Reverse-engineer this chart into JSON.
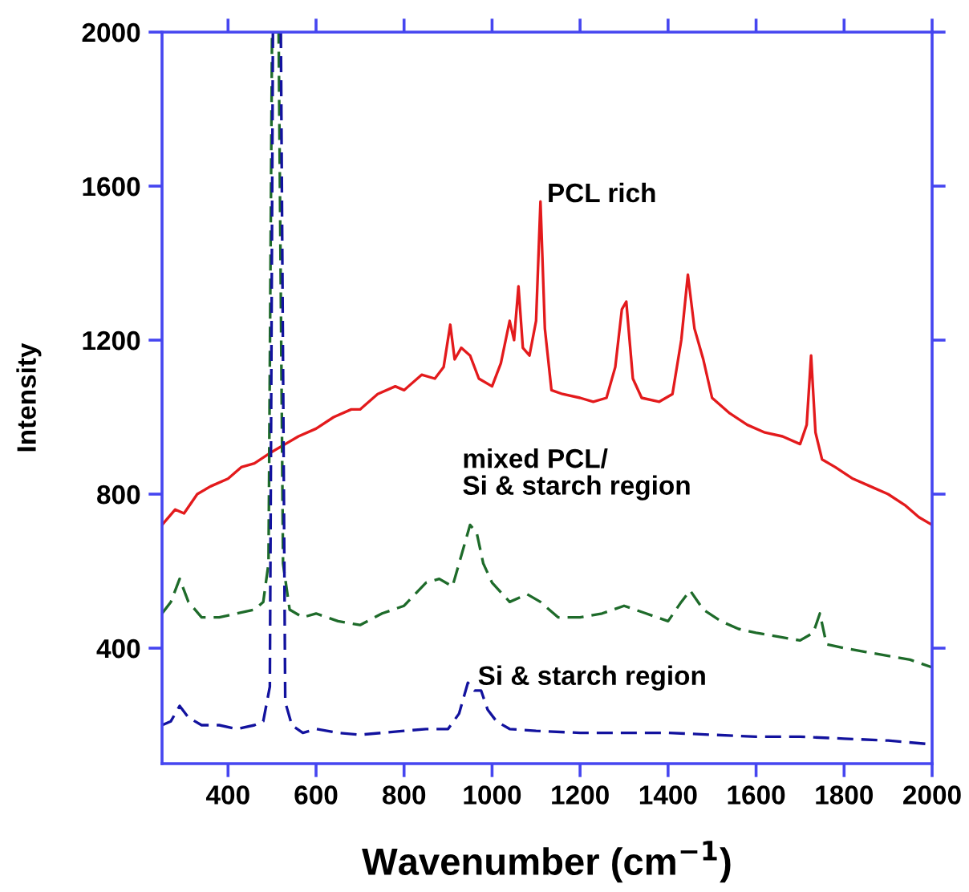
{
  "chart_data": {
    "type": "line",
    "xlabel": "Wavenumber (cm$^{−1}$)",
    "ylabel": "Intensity",
    "xlim": [
      250,
      2000
    ],
    "ylim": [
      100,
      2000
    ],
    "xticks": [
      400,
      600,
      800,
      1000,
      1200,
      1400,
      1600,
      1800,
      2000
    ],
    "yticks": [
      400,
      800,
      1200,
      1600,
      2000
    ],
    "grid": false,
    "legend": false,
    "marker": "none",
    "series": [
      {
        "name": "PCL rich",
        "color": "#e31a1c",
        "line_style": "solid",
        "x": [
          250,
          280,
          300,
          330,
          360,
          400,
          430,
          460,
          500,
          530,
          560,
          600,
          640,
          680,
          700,
          740,
          780,
          800,
          840,
          870,
          890,
          905,
          915,
          930,
          950,
          970,
          1000,
          1020,
          1040,
          1050,
          1060,
          1070,
          1085,
          1100,
          1110,
          1120,
          1135,
          1160,
          1200,
          1230,
          1260,
          1280,
          1295,
          1305,
          1320,
          1340,
          1380,
          1410,
          1430,
          1445,
          1460,
          1480,
          1500,
          1540,
          1580,
          1620,
          1660,
          1700,
          1715,
          1725,
          1735,
          1750,
          1780,
          1820,
          1860,
          1900,
          1940,
          1970,
          2000
        ],
        "values": [
          720,
          760,
          750,
          800,
          820,
          840,
          870,
          880,
          910,
          930,
          950,
          970,
          1000,
          1020,
          1020,
          1060,
          1080,
          1070,
          1110,
          1100,
          1130,
          1240,
          1150,
          1180,
          1160,
          1100,
          1080,
          1140,
          1250,
          1200,
          1340,
          1180,
          1160,
          1250,
          1560,
          1230,
          1070,
          1060,
          1050,
          1040,
          1050,
          1130,
          1280,
          1300,
          1100,
          1050,
          1040,
          1060,
          1200,
          1370,
          1230,
          1150,
          1050,
          1010,
          980,
          960,
          950,
          930,
          980,
          1160,
          960,
          890,
          870,
          840,
          820,
          800,
          770,
          740,
          720
        ]
      },
      {
        "name": "mixed PCL/\nSi & starch region",
        "color": "#1e6b2a",
        "line_style": "dashed",
        "x": [
          250,
          270,
          290,
          310,
          340,
          380,
          420,
          460,
          480,
          492,
          500,
          515,
          525,
          540,
          570,
          600,
          650,
          700,
          750,
          800,
          850,
          880,
          910,
          930,
          950,
          965,
          980,
          1000,
          1040,
          1080,
          1110,
          1150,
          1200,
          1250,
          1300,
          1350,
          1400,
          1430,
          1450,
          1480,
          1520,
          1560,
          1600,
          1650,
          1700,
          1730,
          1745,
          1760,
          1800,
          1850,
          1900,
          1950,
          2000
        ],
        "values": [
          490,
          520,
          580,
          520,
          480,
          480,
          490,
          500,
          520,
          620,
          2000,
          2000,
          620,
          500,
          480,
          490,
          470,
          460,
          490,
          510,
          570,
          580,
          560,
          640,
          720,
          700,
          620,
          570,
          520,
          540,
          520,
          480,
          480,
          490,
          510,
          490,
          470,
          520,
          550,
          500,
          470,
          450,
          440,
          430,
          420,
          440,
          490,
          410,
          400,
          390,
          380,
          370,
          350
        ]
      },
      {
        "name": "Si & starch region",
        "color": "#12129e",
        "line_style": "dashed",
        "x": [
          250,
          270,
          290,
          310,
          340,
          380,
          420,
          460,
          480,
          495,
          502,
          520,
          530,
          545,
          570,
          600,
          650,
          700,
          750,
          800,
          850,
          900,
          925,
          945,
          960,
          975,
          990,
          1010,
          1040,
          1100,
          1200,
          1300,
          1400,
          1500,
          1600,
          1700,
          1800,
          1900,
          2000
        ],
        "values": [
          200,
          210,
          250,
          220,
          200,
          200,
          190,
          200,
          210,
          300,
          2000,
          2000,
          260,
          200,
          180,
          190,
          180,
          175,
          180,
          185,
          190,
          190,
          230,
          310,
          290,
          290,
          240,
          210,
          190,
          185,
          180,
          180,
          180,
          175,
          170,
          170,
          165,
          160,
          150
        ]
      }
    ]
  }
}
